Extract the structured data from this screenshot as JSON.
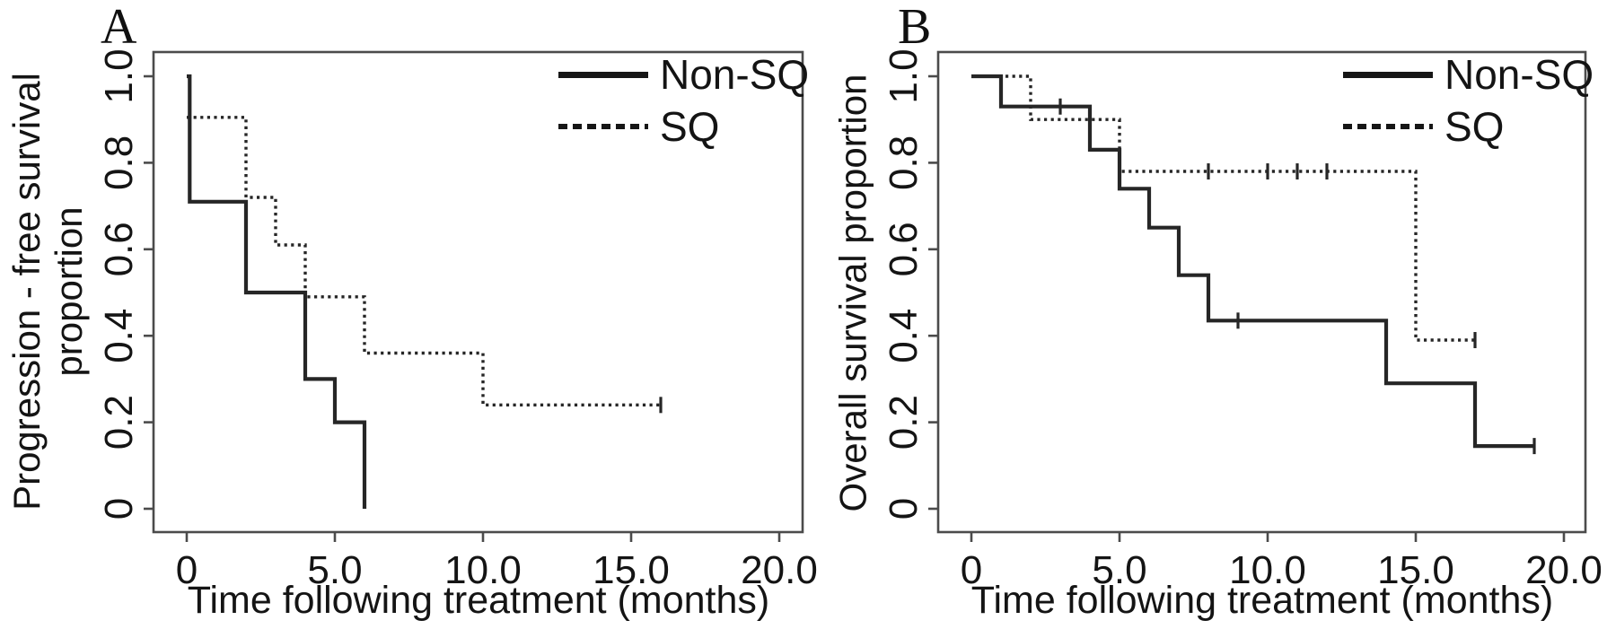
{
  "chart_data": [
    {
      "type": "line",
      "subtype": "kaplan-meier-step",
      "panel_label": "A",
      "xlabel": "Time following treatment (months)",
      "ylabel": "Progression - free survival proportion",
      "ylabel_lines": [
        "Progression - free survival",
        "proportion"
      ],
      "xlim": [
        0,
        20
      ],
      "ylim": [
        0,
        1
      ],
      "x_tick_values": [
        0,
        5,
        10,
        15,
        20
      ],
      "x_tick_labels": [
        "0",
        "5.0",
        "10.0",
        "15.0",
        "20.0"
      ],
      "y_tick_values": [
        0,
        0.2,
        0.4,
        0.6,
        0.8,
        1.0
      ],
      "y_tick_labels": [
        "0",
        "0.2",
        "0.4",
        "0.6",
        "0.8",
        "1.0"
      ],
      "grid": false,
      "legend_position": "top-right",
      "legend": [
        {
          "label": "Non-SQ",
          "style": "solid"
        },
        {
          "label": "SQ",
          "style": "dashed"
        }
      ],
      "series": [
        {
          "name": "Non-SQ",
          "line_style": "solid",
          "points": [
            [
              0,
              1.0
            ],
            [
              0.1,
              1.0
            ],
            [
              0.1,
              0.71
            ],
            [
              2,
              0.71
            ],
            [
              2,
              0.5
            ],
            [
              4,
              0.5
            ],
            [
              4,
              0.3
            ],
            [
              5,
              0.3
            ],
            [
              5,
              0.2
            ],
            [
              6,
              0.2
            ],
            [
              6,
              0
            ]
          ],
          "censor_marks": []
        },
        {
          "name": "SQ",
          "line_style": "dotted",
          "points": [
            [
              0,
              0.905
            ],
            [
              2,
              0.905
            ],
            [
              2,
              0.72
            ],
            [
              3,
              0.72
            ],
            [
              3,
              0.61
            ],
            [
              4,
              0.61
            ],
            [
              4,
              0.49
            ],
            [
              6,
              0.49
            ],
            [
              6,
              0.36
            ],
            [
              10,
              0.36
            ],
            [
              10,
              0.24
            ],
            [
              16,
              0.24
            ]
          ],
          "censor_marks": [
            [
              16,
              0.24
            ]
          ]
        }
      ]
    },
    {
      "type": "line",
      "subtype": "kaplan-meier-step",
      "panel_label": "B",
      "xlabel": "Time following treatment (months)",
      "ylabel": "Overall survival proportion",
      "ylabel_lines": [
        "Overall survival proportion"
      ],
      "xlim": [
        0,
        20
      ],
      "ylim": [
        0,
        1
      ],
      "x_tick_values": [
        0,
        5,
        10,
        15,
        20
      ],
      "x_tick_labels": [
        "0",
        "5.0",
        "10.0",
        "15.0",
        "20.0"
      ],
      "y_tick_values": [
        0,
        0.2,
        0.4,
        0.6,
        0.8,
        1.0
      ],
      "y_tick_labels": [
        "0",
        "0.2",
        "0.4",
        "0.6",
        "0.8",
        "1.0"
      ],
      "grid": false,
      "legend_position": "top-right",
      "legend": [
        {
          "label": "Non-SQ",
          "style": "solid"
        },
        {
          "label": "SQ",
          "style": "dashed"
        }
      ],
      "series": [
        {
          "name": "Non-SQ",
          "line_style": "solid",
          "points": [
            [
              0,
              1.0
            ],
            [
              1,
              1.0
            ],
            [
              1,
              0.93
            ],
            [
              4,
              0.93
            ],
            [
              4,
              0.83
            ],
            [
              5,
              0.83
            ],
            [
              5,
              0.74
            ],
            [
              6,
              0.74
            ],
            [
              6,
              0.65
            ],
            [
              7,
              0.65
            ],
            [
              7,
              0.54
            ],
            [
              8,
              0.54
            ],
            [
              8,
              0.435
            ],
            [
              14,
              0.435
            ],
            [
              14,
              0.29
            ],
            [
              17,
              0.29
            ],
            [
              17,
              0.145
            ],
            [
              19,
              0.145
            ]
          ],
          "censor_marks": [
            [
              3,
              0.93
            ],
            [
              9,
              0.435
            ],
            [
              19,
              0.145
            ]
          ]
        },
        {
          "name": "SQ",
          "line_style": "dotted",
          "points": [
            [
              0,
              1.0
            ],
            [
              2,
              1.0
            ],
            [
              2,
              0.9
            ],
            [
              5,
              0.9
            ],
            [
              5,
              0.78
            ],
            [
              15,
              0.78
            ],
            [
              15,
              0.39
            ],
            [
              17,
              0.39
            ]
          ],
          "censor_marks": [
            [
              8,
              0.78
            ],
            [
              10,
              0.78
            ],
            [
              11,
              0.78
            ],
            [
              12,
              0.78
            ],
            [
              17,
              0.39
            ]
          ]
        }
      ]
    }
  ]
}
